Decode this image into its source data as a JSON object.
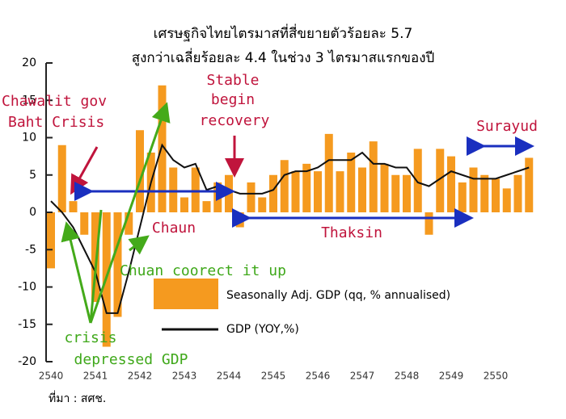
{
  "chart_data": {
    "type": "bar_line",
    "title": "เศรษฐกิจไทยไตรมาสที่สี่ขยายตัวร้อยละ 5.7",
    "subtitle": "สูงกว่าเฉลี่ยร้อยละ 4.4 ในช่วง 3 ไตรมาสแรกของปี",
    "source": "ที่มา : สศช.",
    "categories": [
      "2540",
      null,
      null,
      null,
      "2541",
      null,
      null,
      null,
      "2542",
      null,
      null,
      null,
      "2543",
      null,
      null,
      null,
      "2544",
      null,
      null,
      null,
      "2545",
      null,
      null,
      null,
      "2546",
      null,
      null,
      null,
      "2547",
      null,
      null,
      null,
      "2548",
      null,
      null,
      null,
      "2549",
      null,
      null,
      null,
      "2550",
      null,
      null,
      null
    ],
    "series": [
      {
        "name": "Seasonally Adj. GDP (qq, % annualised)",
        "color": "#f59a1f",
        "kind": "bar",
        "values": [
          -7.5,
          9,
          1.5,
          -3,
          -12,
          -18,
          -14,
          -3,
          11,
          8,
          17,
          6,
          2,
          6,
          1.5,
          4,
          5,
          -2,
          4,
          2,
          5,
          7,
          5.5,
          6.5,
          5.5,
          10.5,
          5.5,
          8,
          6,
          9.5,
          6.5,
          5,
          5,
          8.5,
          -3,
          8.5,
          7.5,
          4,
          6,
          5,
          4.5,
          3.2,
          5,
          7.3
        ]
      },
      {
        "name": "GDP (YOY,%)",
        "color": "#111111",
        "kind": "line",
        "values": [
          1.5,
          0,
          -2,
          -5,
          -8,
          -13.5,
          -13.5,
          -8,
          -2,
          4,
          9,
          7,
          6,
          6.5,
          3,
          3.5,
          3,
          2.5,
          2.5,
          2.5,
          3,
          5,
          5.5,
          5.5,
          6,
          7,
          7,
          7,
          8,
          6.5,
          6.5,
          6,
          6,
          4,
          3.5,
          4.5,
          5.5,
          5,
          4.5,
          4.5,
          4.5,
          5,
          5.5,
          6
        ]
      }
    ],
    "ylim": [
      -20,
      20
    ],
    "yticks": [
      -20,
      -15,
      -10,
      -5,
      0,
      5,
      10,
      15,
      20
    ],
    "annotations": [
      "Chawalit gov",
      "Baht Crisis",
      "Stable",
      "begin",
      "recovery",
      "Surayud",
      "Chaun",
      "Thaksin",
      "Chuan coorect it up",
      "crisis",
      "depressed GDP"
    ]
  }
}
